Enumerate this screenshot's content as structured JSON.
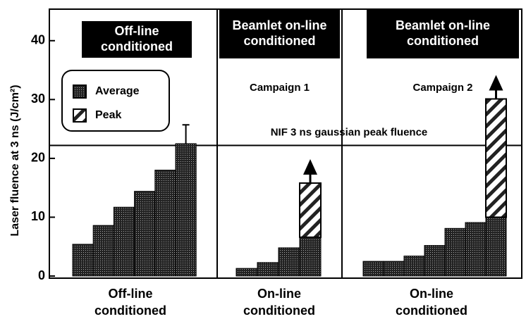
{
  "chart_data": {
    "type": "bar",
    "ylabel": "Laser fluence at 3 ns (J/cm²)",
    "ylim": [
      0,
      45
    ],
    "yticks": [
      0,
      10,
      20,
      30,
      40
    ],
    "series": [
      {
        "name": "Average",
        "color": "#222222"
      },
      {
        "name": "Peak",
        "color": "#ffffff"
      }
    ],
    "reference": {
      "label": "NIF 3 ns gaussian peak fluence",
      "value": 22.2
    },
    "groups": [
      {
        "header": [
          "Off-line",
          "conditioned"
        ],
        "label": [
          "Off-line",
          "conditioned"
        ],
        "values": [
          5.4,
          8.6,
          11.7,
          14.4,
          18.0,
          22.5
        ],
        "errors": [
          null,
          null,
          null,
          null,
          null,
          3.2
        ]
      },
      {
        "header": [
          "Beamlet on-line",
          "conditioned"
        ],
        "subtitle": "Campaign 1",
        "label": [
          "On-line",
          "conditioned"
        ],
        "values": [
          1.3,
          2.3,
          4.8,
          6.6
        ],
        "peak": [
          null,
          null,
          null,
          15.8
        ]
      },
      {
        "header": [
          "Beamlet on-line",
          "conditioned"
        ],
        "subtitle": "Campaign 2",
        "label": [
          "On-line",
          "conditioned"
        ],
        "values": [
          2.5,
          2.5,
          3.4,
          5.2,
          8.1,
          9.1,
          10.0
        ],
        "peak": [
          null,
          null,
          null,
          null,
          null,
          null,
          30.1
        ]
      }
    ]
  }
}
